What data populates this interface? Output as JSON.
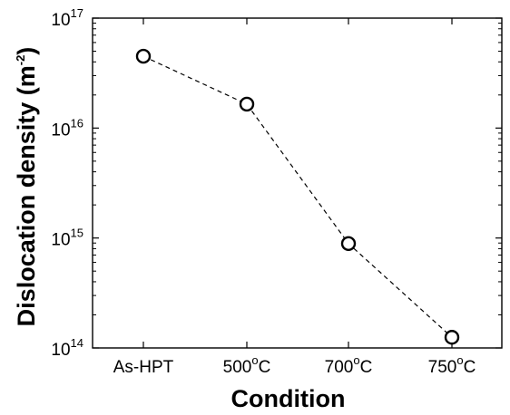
{
  "chart_data": {
    "type": "line",
    "title": "",
    "xlabel": "Condition",
    "ylabel": "Dislocation density (m",
    "ylabel_sup": "-2",
    "ylabel_close": ")",
    "yscale": "log",
    "ylim": [
      100000000000000.0,
      1e+17
    ],
    "grid": false,
    "line_style": "dashed",
    "marker": "open-circle",
    "categories": [
      {
        "base": "As-HPT",
        "sup": "",
        "unit": ""
      },
      {
        "base": "500",
        "sup": "o",
        "unit": "C"
      },
      {
        "base": "700",
        "sup": "o",
        "unit": "C"
      },
      {
        "base": "750",
        "sup": "o",
        "unit": "C"
      }
    ],
    "values": [
      4.5e+16,
      1.65e+16,
      890000000000000.0,
      125000000000000.0
    ],
    "y_ticks": [
      {
        "value": 100000000000000.0,
        "base": "10",
        "exp": "14"
      },
      {
        "value": 1000000000000000.0,
        "base": "10",
        "exp": "15"
      },
      {
        "value": 1e+16,
        "base": "10",
        "exp": "16"
      },
      {
        "value": 1e+17,
        "base": "10",
        "exp": "17"
      }
    ]
  }
}
